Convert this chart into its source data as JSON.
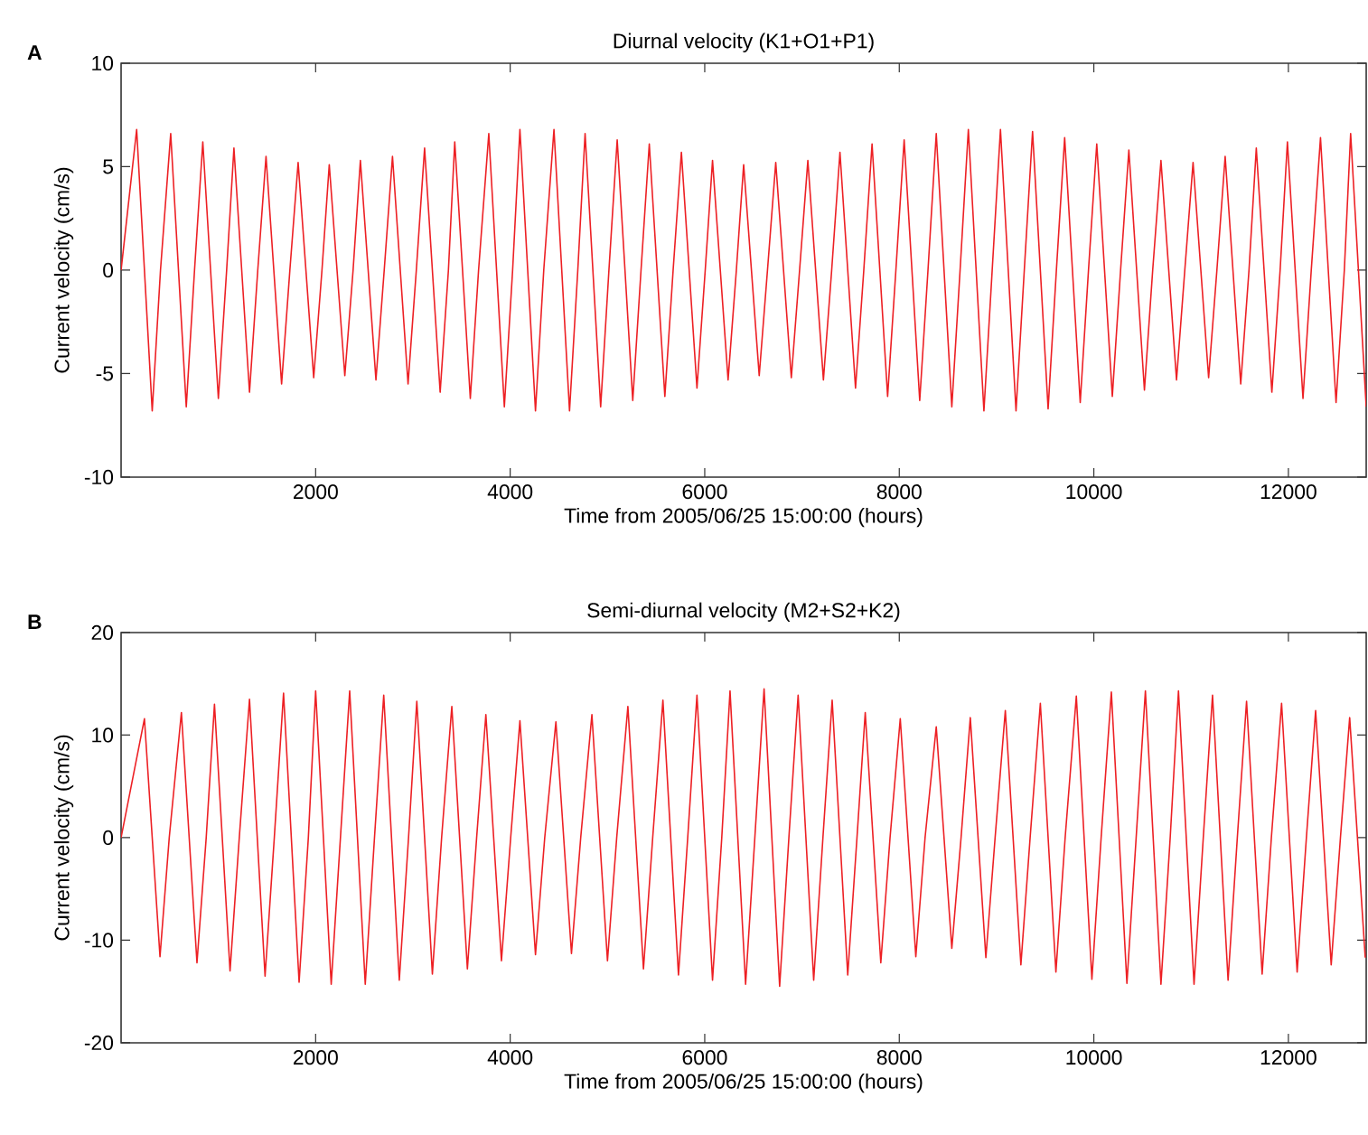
{
  "chart_data": [
    {
      "type": "line",
      "title": "Diurnal velocity (K1+O1+P1)",
      "xlabel": "Time from 2005/06/25 15:00:00 (hours)",
      "ylabel": "Current velocity (cm/s)",
      "annotations": [
        "A"
      ],
      "color": "#ed2024",
      "x": [
        0,
        160,
        320,
        405,
        510,
        670,
        755,
        840,
        1000,
        1085,
        1160,
        1320,
        1405,
        1490,
        1650,
        1735,
        1820,
        1980,
        2065,
        2140,
        2300,
        2385,
        2460,
        2620,
        2705,
        2790,
        2950,
        3035,
        3120,
        3280,
        3365,
        3430,
        3590,
        3675,
        3780,
        3940,
        4025,
        4100,
        4260,
        4345,
        4450,
        4610,
        4695,
        4770,
        4930,
        5015,
        5100,
        5260,
        5345,
        5430,
        5590,
        5675,
        5760,
        5920,
        6005,
        6080,
        6240,
        6325,
        6400,
        6560,
        6645,
        6730,
        6890,
        6975,
        7060,
        7220,
        7305,
        7390,
        7550,
        7635,
        7720,
        7880,
        7965,
        8050,
        8210,
        8295,
        8380,
        8540,
        8625,
        8710,
        8870,
        8955,
        9040,
        9200,
        9285,
        9370,
        9530,
        9615,
        9700,
        9860,
        9945,
        10030,
        10190,
        10275,
        10360,
        10520,
        10605,
        10690,
        10850,
        10935,
        11020,
        11180,
        11265,
        11350,
        11510,
        11595,
        11670,
        11830,
        11915,
        11990,
        12150,
        12235,
        12330,
        12490,
        12575,
        12640,
        12800
      ],
      "values": [
        0,
        6.8,
        -6.8,
        0,
        6.6,
        -6.6,
        0,
        6.2,
        -6.2,
        0,
        5.9,
        -5.9,
        0,
        5.5,
        -5.5,
        0,
        5.2,
        -5.2,
        0,
        5.1,
        -5.1,
        0,
        5.3,
        -5.3,
        0,
        5.5,
        -5.5,
        0,
        5.9,
        -5.9,
        0,
        6.2,
        -6.2,
        0,
        6.6,
        -6.6,
        0,
        6.8,
        -6.8,
        0,
        6.8,
        -6.8,
        0,
        6.6,
        -6.6,
        0,
        6.3,
        -6.3,
        0,
        6.1,
        -6.1,
        0,
        5.7,
        -5.7,
        0,
        5.3,
        -5.3,
        0,
        5.1,
        -5.1,
        0,
        5.2,
        -5.2,
        0,
        5.3,
        -5.3,
        0,
        5.7,
        -5.7,
        0,
        6.1,
        -6.1,
        0,
        6.3,
        -6.3,
        0,
        6.6,
        -6.6,
        0,
        6.8,
        -6.8,
        0,
        6.8,
        -6.8,
        0,
        6.7,
        -6.7,
        0,
        6.4,
        -6.4,
        0,
        6.1,
        -6.1,
        0,
        5.8,
        -5.8,
        0,
        5.3,
        -5.3,
        0,
        5.2,
        -5.2,
        0,
        5.5,
        -5.5,
        0,
        5.9,
        -5.9,
        0,
        6.2,
        -6.2,
        0,
        6.4,
        -6.4,
        0,
        6.6,
        -6.6
      ],
      "xlim": [
        0,
        12800
      ],
      "ylim": [
        -10,
        10
      ],
      "xticks": [
        2000,
        4000,
        6000,
        8000,
        10000,
        12000
      ],
      "yticks": [
        -10,
        -5,
        0,
        5,
        10
      ]
    },
    {
      "type": "line",
      "title": "Semi-diurnal velocity (M2+S2+K2)",
      "xlabel": "Time from 2005/06/25 15:00:00 (hours)",
      "ylabel": "Current velocity (cm/s)",
      "annotations": [
        "B"
      ],
      "color": "#ed2024",
      "x": [
        0,
        240,
        400,
        495,
        620,
        780,
        875,
        960,
        1120,
        1215,
        1320,
        1480,
        1575,
        1670,
        1830,
        1925,
        2000,
        2160,
        2255,
        2350,
        2510,
        2605,
        2700,
        2860,
        2955,
        3040,
        3200,
        3295,
        3400,
        3560,
        3655,
        3750,
        3910,
        4005,
        4100,
        4260,
        4355,
        4470,
        4630,
        4725,
        4840,
        5000,
        5095,
        5210,
        5370,
        5465,
        5570,
        5730,
        5825,
        5920,
        6080,
        6175,
        6260,
        6420,
        6515,
        6610,
        6770,
        6865,
        6960,
        7120,
        7215,
        7310,
        7470,
        7565,
        7650,
        7810,
        7905,
        8010,
        8170,
        8265,
        8380,
        8540,
        8635,
        8730,
        8890,
        8985,
        9090,
        9250,
        9345,
        9450,
        9610,
        9705,
        9820,
        9980,
        10075,
        10180,
        10340,
        10435,
        10530,
        10690,
        10785,
        10870,
        11030,
        11125,
        11220,
        11380,
        11475,
        11570,
        11730,
        11825,
        11930,
        12090,
        12185,
        12280,
        12440,
        12535,
        12630,
        12790
      ],
      "values": [
        0,
        11.6,
        -11.6,
        0,
        12.2,
        -12.2,
        0,
        13.0,
        -13.0,
        0,
        13.5,
        -13.5,
        0,
        14.1,
        -14.1,
        0,
        14.3,
        -14.3,
        0,
        14.3,
        -14.3,
        0,
        13.9,
        -13.9,
        0,
        13.3,
        -13.3,
        0,
        12.8,
        -12.8,
        0,
        12.0,
        -12.0,
        0,
        11.4,
        -11.4,
        0,
        11.3,
        -11.3,
        0,
        12.0,
        -12.0,
        0,
        12.8,
        -12.8,
        0,
        13.4,
        -13.4,
        0,
        13.9,
        -13.9,
        0,
        14.3,
        -14.3,
        0,
        14.5,
        -14.5,
        0,
        13.9,
        -13.9,
        0,
        13.4,
        -13.4,
        0,
        12.2,
        -12.2,
        0,
        11.6,
        -11.6,
        0,
        10.8,
        -10.8,
        0,
        11.7,
        -11.7,
        0,
        12.4,
        -12.4,
        0,
        13.1,
        -13.1,
        0,
        13.8,
        -13.8,
        0,
        14.2,
        -14.2,
        0,
        14.3,
        -14.3,
        0,
        14.3,
        -14.3,
        0,
        13.9,
        -13.9,
        0,
        13.3,
        -13.3,
        0,
        13.1,
        -13.1,
        0,
        12.4,
        -12.4,
        0,
        11.7,
        -11.7
      ],
      "xlim": [
        0,
        12800
      ],
      "ylim": [
        -20,
        20
      ],
      "xticks": [
        2000,
        4000,
        6000,
        8000,
        10000,
        12000
      ],
      "yticks": [
        -20,
        -10,
        0,
        10,
        20
      ]
    }
  ]
}
